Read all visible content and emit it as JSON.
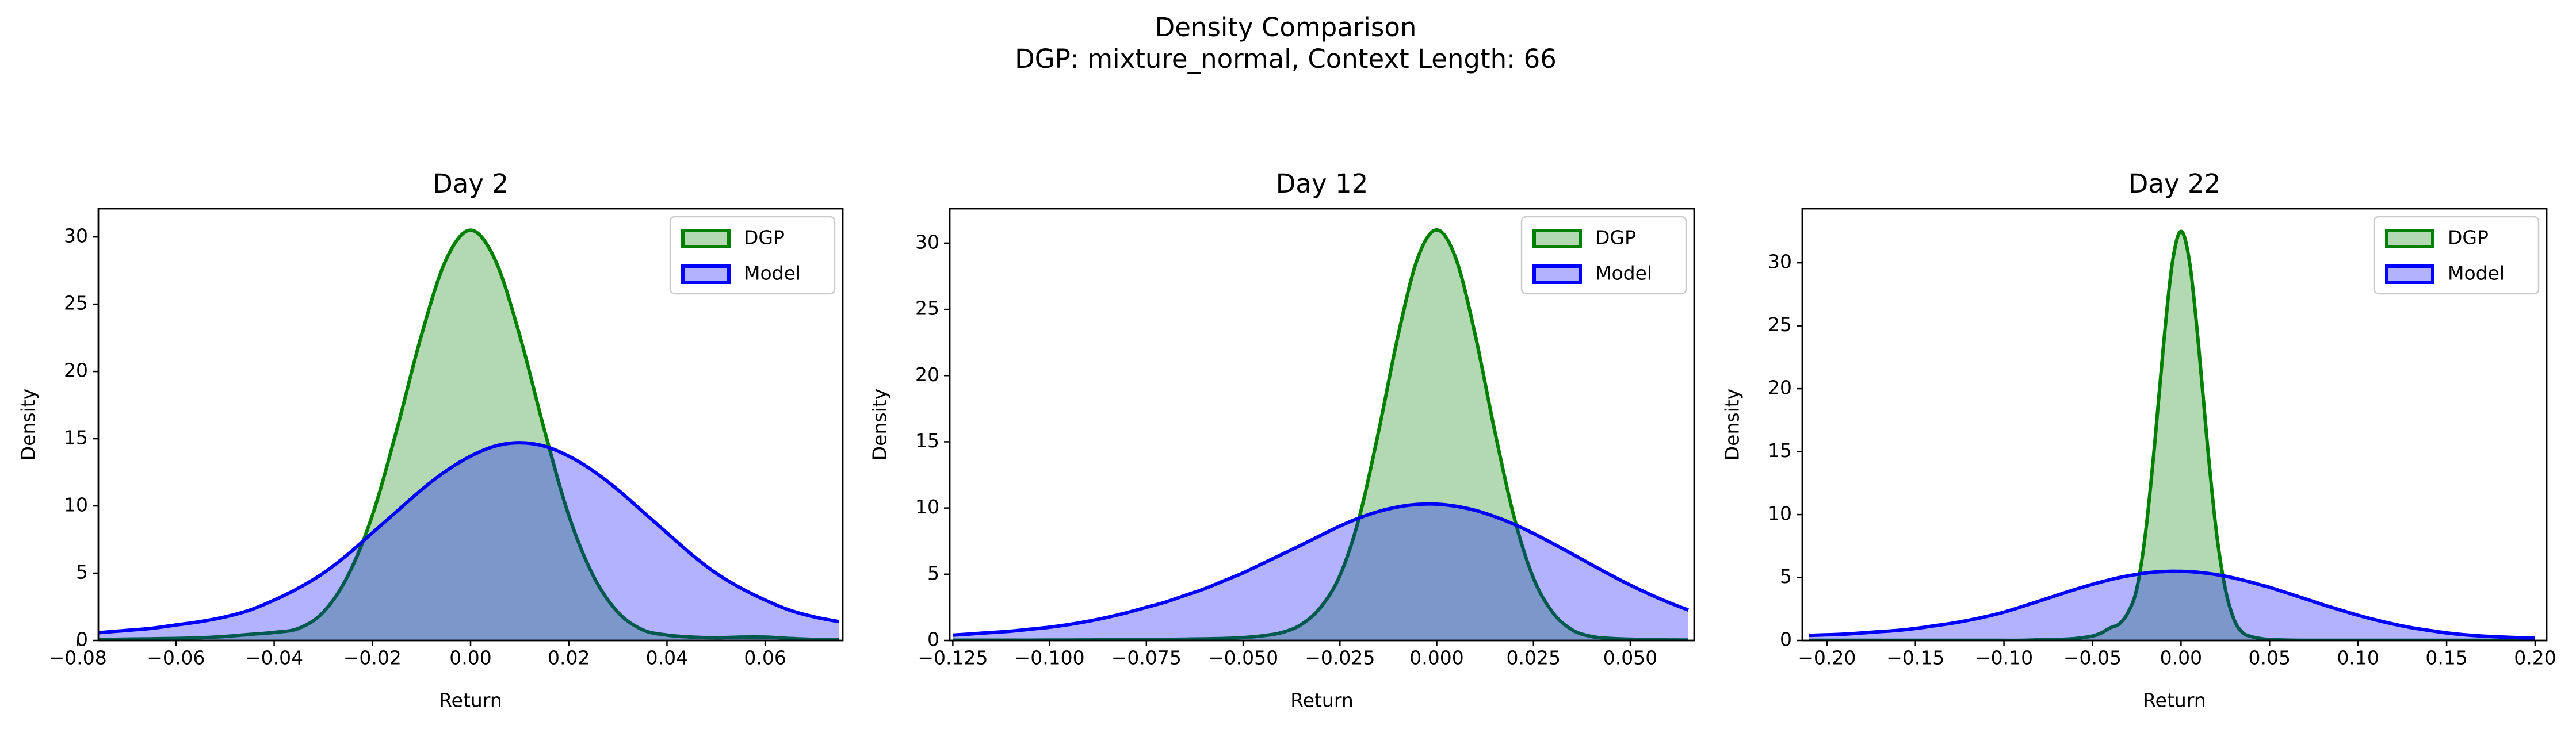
{
  "title": "Density Comparison",
  "subtitle": "DGP: mixture_normal, Context Length: 66",
  "chart_data": [
    {
      "type": "area",
      "title": "Day 2",
      "xlabel": "Return",
      "ylabel": "Density",
      "legend": "upper right",
      "xlim": [
        -0.0758,
        0.0758
      ],
      "ylim": [
        0,
        32.1
      ],
      "xticks": [
        {
          "value": -0.08,
          "label": "−0.08"
        },
        {
          "value": -0.06,
          "label": "−0.06"
        },
        {
          "value": -0.04,
          "label": "−0.04"
        },
        {
          "value": -0.02,
          "label": "−0.02"
        },
        {
          "value": 0,
          "label": "0.00"
        },
        0.02,
        0.04,
        0.06
      ],
      "yticks": [
        0,
        5,
        10,
        15,
        20,
        25,
        30
      ],
      "x": [
        -0.08,
        -0.075,
        -0.07,
        -0.065,
        -0.06,
        -0.055,
        -0.05,
        -0.045,
        -0.04,
        -0.035,
        -0.03,
        -0.025,
        -0.02,
        -0.015,
        -0.01,
        -0.005,
        0,
        0.005,
        0.01,
        0.015,
        0.02,
        0.025,
        0.03,
        0.035,
        0.04,
        0.045,
        0.05,
        0.055,
        0.06,
        0.065,
        0.07,
        0.075
      ],
      "series": [
        {
          "name": "DGP",
          "color": "#008000",
          "values": [
            0.05,
            0.07,
            0.1,
            0.12,
            0.15,
            0.2,
            0.3,
            0.45,
            0.6,
            0.9,
            2.1,
            4.8,
            9.3,
            15.7,
            22.7,
            28.3,
            30.5,
            28.3,
            22.7,
            15.7,
            9.3,
            4.8,
            2.1,
            0.8,
            0.4,
            0.25,
            0.2,
            0.25,
            0.25,
            0.15,
            0.08,
            0.05
          ]
        },
        {
          "name": "Model",
          "color": "#0000ff",
          "values": [
            0.5,
            0.6,
            0.75,
            0.9,
            1.15,
            1.4,
            1.75,
            2.25,
            3.0,
            3.9,
            5.0,
            6.4,
            8.0,
            9.6,
            11.2,
            12.6,
            13.7,
            14.45,
            14.7,
            14.45,
            13.7,
            12.6,
            11.2,
            9.6,
            8.0,
            6.4,
            5.0,
            3.9,
            3.0,
            2.25,
            1.75,
            1.4
          ]
        }
      ]
    },
    {
      "type": "area",
      "title": "Day 12",
      "xlabel": "Return",
      "ylabel": "Density",
      "legend": "upper right",
      "xlim": [
        -0.1258,
        0.0665
      ],
      "ylim": [
        0,
        32.6
      ],
      "xticks": [
        {
          "value": -0.125,
          "label": "−0.125"
        },
        {
          "value": -0.1,
          "label": "−0.100"
        },
        {
          "value": -0.075,
          "label": "−0.075"
        },
        {
          "value": -0.05,
          "label": "−0.050"
        },
        {
          "value": -0.025,
          "label": "−0.025"
        },
        {
          "value": 0,
          "label": "0.000"
        },
        0.025,
        {
          "value": 0.05,
          "label": "0.050"
        }
      ],
      "yticks": [
        0,
        5,
        10,
        15,
        20,
        25,
        30
      ],
      "x": [
        -0.125,
        -0.12,
        -0.115,
        -0.11,
        -0.105,
        -0.1,
        -0.095,
        -0.09,
        -0.085,
        -0.08,
        -0.075,
        -0.07,
        -0.065,
        -0.06,
        -0.055,
        -0.05,
        -0.045,
        -0.04,
        -0.035,
        -0.03,
        -0.025,
        -0.02,
        -0.015,
        -0.01,
        -0.005,
        0,
        0.005,
        0.01,
        0.015,
        0.02,
        0.025,
        0.03,
        0.035,
        0.04,
        0.045,
        0.05,
        0.055,
        0.06,
        0.065
      ],
      "series": [
        {
          "name": "DGP",
          "color": "#008000",
          "values": [
            0.02,
            0.02,
            0.02,
            0.02,
            0.02,
            0.03,
            0.03,
            0.04,
            0.05,
            0.06,
            0.07,
            0.08,
            0.1,
            0.12,
            0.15,
            0.22,
            0.35,
            0.6,
            1.2,
            2.5,
            4.9,
            9.3,
            15.8,
            23.0,
            28.8,
            31,
            28.8,
            23.0,
            15.8,
            9.3,
            4.7,
            2.1,
            0.8,
            0.3,
            0.15,
            0.1,
            0.06,
            0.04,
            0.03
          ]
        },
        {
          "name": "Model",
          "color": "#0000ff",
          "values": [
            0.4,
            0.5,
            0.6,
            0.7,
            0.85,
            1.0,
            1.2,
            1.45,
            1.75,
            2.1,
            2.5,
            2.9,
            3.4,
            3.9,
            4.5,
            5.1,
            5.8,
            6.5,
            7.2,
            7.93,
            8.64,
            9.25,
            9.74,
            10.08,
            10.27,
            10.29,
            10.13,
            9.82,
            9.35,
            8.77,
            8.08,
            7.32,
            6.53,
            5.72,
            4.93,
            4.18,
            3.49,
            2.86,
            2.3
          ]
        }
      ]
    },
    {
      "type": "area",
      "title": "Day 22",
      "xlabel": "Return",
      "ylabel": "Density",
      "legend": "upper right",
      "xlim": [
        -0.2139,
        0.2065
      ],
      "ylim": [
        0,
        34.3
      ],
      "xticks": [
        {
          "value": -0.2,
          "label": "−0.20"
        },
        {
          "value": -0.15,
          "label": "−0.15"
        },
        {
          "value": -0.1,
          "label": "−0.10"
        },
        {
          "value": -0.05,
          "label": "−0.05"
        },
        {
          "value": 0,
          "label": "0.00"
        },
        0.05,
        {
          "value": 0.1,
          "label": "0.10"
        },
        0.15,
        {
          "value": 0.2,
          "label": "0.20"
        }
      ],
      "yticks": [
        0,
        5,
        10,
        15,
        20,
        25,
        30
      ],
      "x": [
        -0.21,
        -0.2,
        -0.19,
        -0.18,
        -0.17,
        -0.16,
        -0.15,
        -0.14,
        -0.13,
        -0.12,
        -0.11,
        -0.1,
        -0.09,
        -0.08,
        -0.07,
        -0.06,
        -0.05,
        -0.045,
        -0.04,
        -0.035,
        -0.03,
        -0.025,
        -0.02,
        -0.015,
        -0.01,
        -0.005,
        0,
        0.005,
        0.01,
        0.015,
        0.02,
        0.025,
        0.03,
        0.035,
        0.04,
        0.045,
        0.05,
        0.06,
        0.07,
        0.08,
        0.09,
        0.1,
        0.11,
        0.12,
        0.13,
        0.14,
        0.15,
        0.16,
        0.17,
        0.18,
        0.19,
        0.2
      ],
      "series": [
        {
          "name": "DGP",
          "color": "#008000",
          "values": [
            0.01,
            0.01,
            0.01,
            0.01,
            0.01,
            0.01,
            0.01,
            0.01,
            0.01,
            0.01,
            0.01,
            0.01,
            0.01,
            0.05,
            0.08,
            0.15,
            0.35,
            0.6,
            1.0,
            1.3,
            2.2,
            4.1,
            8.6,
            15.4,
            23.3,
            29.9,
            32.5,
            29.9,
            23.3,
            15.4,
            8.6,
            4.1,
            1.65,
            0.6,
            0.3,
            0.15,
            0.08,
            0.03,
            0.01,
            0.01,
            0.01,
            0.01,
            0.01,
            0.01,
            0.01,
            0.01,
            0.01,
            0.01,
            0.01,
            0.01,
            0.01,
            0.01
          ]
        },
        {
          "name": "Model",
          "color": "#0000ff",
          "values": [
            0.4,
            0.45,
            0.5,
            0.6,
            0.7,
            0.8,
            0.95,
            1.15,
            1.35,
            1.6,
            1.9,
            2.25,
            2.68,
            3.13,
            3.59,
            4.04,
            4.46,
            4.65,
            4.83,
            4.99,
            5.13,
            5.25,
            5.35,
            5.43,
            5.47,
            5.5,
            5.49,
            5.47,
            5.41,
            5.33,
            5.23,
            5.1,
            4.96,
            4.79,
            4.61,
            4.41,
            4.22,
            3.77,
            3.31,
            2.85,
            2.42,
            2.0,
            1.63,
            1.3,
            1.02,
            0.8,
            0.6,
            0.45,
            0.35,
            0.28,
            0.22,
            0.18
          ]
        }
      ]
    }
  ]
}
